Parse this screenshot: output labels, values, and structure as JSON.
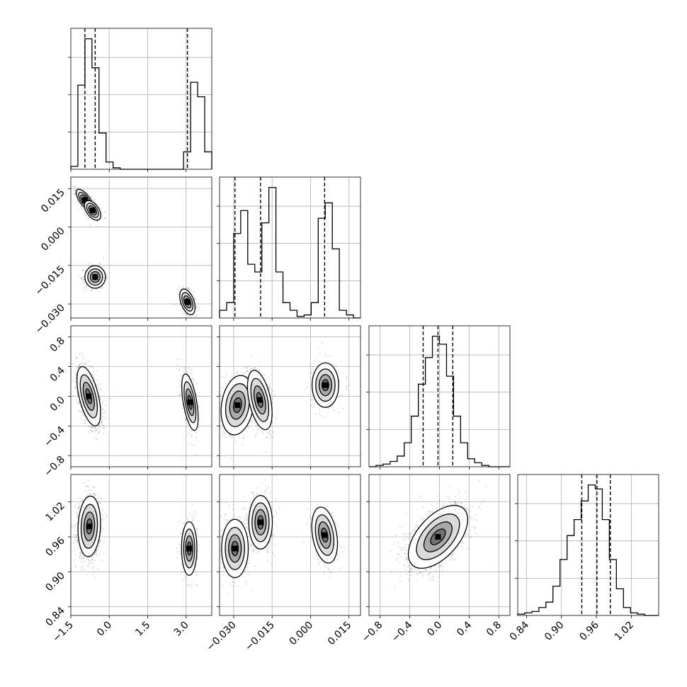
{
  "figure": {
    "type": "corner-plot",
    "n_params": 4
  },
  "chart_data": [
    {
      "id": "p0",
      "type": "histogram",
      "position": "row 1, col 1",
      "xlim": [
        -1.5,
        4.0
      ],
      "grid": true,
      "quantiles": [
        -0.95,
        -0.55,
        3.05
      ],
      "bins": {
        "start": -1.5,
        "width": 0.275,
        "values": [
          0.02,
          0.58,
          0.9,
          0.7,
          0.25,
          0.05,
          0.01,
          0,
          0,
          0,
          0,
          0,
          0,
          0,
          0,
          0,
          0.12,
          0.6,
          0.5,
          0.12
        ]
      }
    },
    {
      "id": "p1",
      "type": "histogram",
      "position": "row 2, col 2",
      "xlim": [
        -0.0355,
        0.0195
      ],
      "grid": true,
      "quantiles": [
        -0.0295,
        -0.0195,
        0.0055
      ],
      "bins": {
        "start": -0.0355,
        "width": 0.00275,
        "values": [
          0.05,
          0.1,
          0.55,
          0.7,
          0.35,
          0.3,
          0.62,
          0.85,
          0.3,
          0.1,
          0.05,
          0.01,
          0.02,
          0.1,
          0.65,
          0.75,
          0.45,
          0.05,
          0.02,
          0
        ]
      }
    },
    {
      "id": "p2",
      "type": "histogram",
      "position": "row 3, col 3",
      "xlim": [
        -0.95,
        0.95
      ],
      "grid": true,
      "quantiles": [
        -0.22,
        -0.02,
        0.18
      ],
      "bins": {
        "start": -0.95,
        "width": 0.095,
        "values": [
          0,
          0.01,
          0.02,
          0.04,
          0.08,
          0.18,
          0.38,
          0.62,
          0.82,
          0.98,
          0.92,
          0.68,
          0.38,
          0.18,
          0.06,
          0.03,
          0.01,
          0,
          0,
          0
        ]
      }
    },
    {
      "id": "p3",
      "type": "histogram",
      "position": "row 4, col 4",
      "xlim": [
        0.825,
        1.067
      ],
      "grid": true,
      "quantiles": [
        0.935,
        0.961,
        0.984
      ],
      "bins": {
        "start": 0.825,
        "width": 0.0121,
        "values": [
          0.01,
          0.02,
          0.03,
          0.06,
          0.1,
          0.22,
          0.42,
          0.6,
          0.72,
          0.86,
          0.98,
          0.95,
          0.72,
          0.42,
          0.2,
          0.06,
          0.02,
          0.01,
          0,
          0
        ]
      }
    },
    {
      "id": "p10",
      "type": "scatter-density",
      "position": "row 2, col 1",
      "x": "param1",
      "y": "param2",
      "xlim": [
        -1.5,
        4.0
      ],
      "ylim": [
        -0.0355,
        0.0195
      ],
      "grid": true,
      "clusters": [
        {
          "x": -0.95,
          "y": 0.0105,
          "sx": 0.17,
          "sy": 0.0021,
          "rho": -0.7,
          "weight": 0.32
        },
        {
          "x": -0.65,
          "y": 0.0065,
          "sx": 0.16,
          "sy": 0.0019,
          "rho": -0.5,
          "weight": 0.15
        },
        {
          "x": -0.55,
          "y": -0.0195,
          "sx": 0.2,
          "sy": 0.0022,
          "rho": 0.0,
          "weight": 0.27
        },
        {
          "x": 3.05,
          "y": -0.0292,
          "sx": 0.15,
          "sy": 0.0025,
          "rho": -0.45,
          "weight": 0.26
        }
      ]
    },
    {
      "id": "p20",
      "type": "scatter-density",
      "position": "row 3, col 1",
      "x": "param1",
      "y": "param3",
      "xlim": [
        -1.5,
        4.0
      ],
      "ylim": [
        -0.95,
        0.95
      ],
      "grid": true,
      "clusters": [
        {
          "x": -0.8,
          "y": 0.0,
          "sx": 0.23,
          "sy": 0.2,
          "rho": -0.55,
          "weight": 0.74
        },
        {
          "x": 3.15,
          "y": -0.08,
          "sx": 0.16,
          "sy": 0.19,
          "rho": -0.55,
          "weight": 0.26
        }
      ]
    },
    {
      "id": "p30",
      "type": "scatter-density",
      "position": "row 4, col 1",
      "x": "param1",
      "y": "param4",
      "xlim": [
        -1.5,
        4.0
      ],
      "ylim": [
        0.825,
        1.067
      ],
      "grid": true,
      "clusters": [
        {
          "x": -0.78,
          "y": 0.978,
          "sx": 0.22,
          "sy": 0.026,
          "rho": 0.1,
          "weight": 0.74
        },
        {
          "x": 3.12,
          "y": 0.94,
          "sx": 0.15,
          "sy": 0.023,
          "rho": 0.0,
          "weight": 0.26
        }
      ]
    },
    {
      "id": "p21",
      "type": "scatter-density",
      "position": "row 3, col 2",
      "x": "param2",
      "y": "param3",
      "xlim": [
        -0.0355,
        0.0195
      ],
      "ylim": [
        -0.95,
        0.95
      ],
      "grid": true,
      "clusters": [
        {
          "x": -0.0285,
          "y": -0.12,
          "sx": 0.0032,
          "sy": 0.2,
          "rho": 0.2,
          "weight": 0.3
        },
        {
          "x": -0.0198,
          "y": -0.05,
          "sx": 0.0024,
          "sy": 0.2,
          "rho": -0.45,
          "weight": 0.44
        },
        {
          "x": 0.0058,
          "y": 0.15,
          "sx": 0.0026,
          "sy": 0.15,
          "rho": 0.0,
          "weight": 0.26
        }
      ]
    },
    {
      "id": "p31",
      "type": "scatter-density",
      "position": "row 4, col 2",
      "x": "param2",
      "y": "param4",
      "xlim": [
        -0.0355,
        0.0195
      ],
      "ylim": [
        0.825,
        1.067
      ],
      "grid": true,
      "clusters": [
        {
          "x": -0.0295,
          "y": 0.94,
          "sx": 0.0026,
          "sy": 0.025,
          "rho": 0.0,
          "weight": 0.3
        },
        {
          "x": -0.0195,
          "y": 0.985,
          "sx": 0.0023,
          "sy": 0.023,
          "rho": 0.0,
          "weight": 0.44
        },
        {
          "x": 0.0055,
          "y": 0.963,
          "sx": 0.0025,
          "sy": 0.024,
          "rho": -0.3,
          "weight": 0.26
        }
      ]
    },
    {
      "id": "p32",
      "type": "scatter-density",
      "position": "row 4, col 3",
      "x": "param3",
      "y": "param4",
      "xlim": [
        -0.95,
        0.95
      ],
      "ylim": [
        0.825,
        1.067
      ],
      "grid": true,
      "clusters": [
        {
          "x": -0.02,
          "y": 0.96,
          "sx": 0.2,
          "sy": 0.027,
          "rho": 0.55,
          "weight": 1.0
        }
      ]
    }
  ],
  "axes": {
    "param1": {
      "ticks": [
        -1.5,
        0.0,
        1.5,
        3.0
      ],
      "labels": [
        "−1.5",
        "0.0",
        "1.5",
        "3.0"
      ]
    },
    "param2": {
      "ticks": [
        -0.03,
        -0.015,
        0.0,
        0.015
      ],
      "labels": [
        "−0.030",
        "−0.015",
        "0.000",
        "0.015"
      ]
    },
    "param3": {
      "ticks": [
        -0.8,
        -0.4,
        0.0,
        0.4,
        0.8
      ],
      "labels": [
        "−0.8",
        "−0.4",
        "0.0",
        "0.4",
        "0.8"
      ]
    },
    "param4": {
      "ticks": [
        0.84,
        0.9,
        0.96,
        1.02
      ],
      "labels": [
        "0.84",
        "0.90",
        "0.96",
        "1.02"
      ]
    }
  },
  "colors": {
    "line": "#000000",
    "grid": "#b0b0b0",
    "point": "#000000"
  }
}
